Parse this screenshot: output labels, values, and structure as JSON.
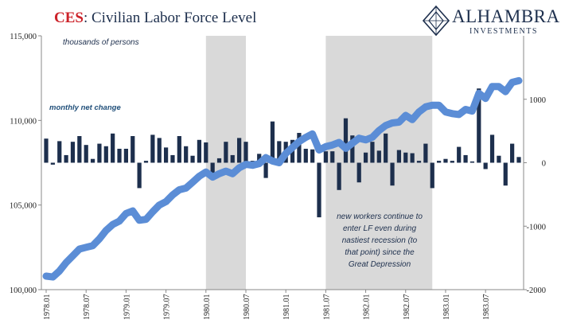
{
  "header": {
    "title_prefix": "CES",
    "title_rest": ": Civilian Labor Force Level"
  },
  "logo": {
    "name": "ALHAMBRA",
    "subtitle": "INVESTMENTS"
  },
  "colors": {
    "line": "#5b8dd6",
    "bars": "#1d2f4d",
    "recession": "#d9d9d9",
    "title_accent": "#cc2229",
    "text": "#1d2f4d"
  },
  "chart_data": {
    "type": "line",
    "title": "CES: Civilian Labor Force Level",
    "annotations": {
      "units": "thousands of persons",
      "bars_label": "monthly net change",
      "note": [
        "new workers continue to",
        "enter LF even during",
        "nastiest recession (to",
        "that point) since the",
        "Great Depression"
      ]
    },
    "x_tick_labels": [
      "1978.01",
      "1978.07",
      "1979.01",
      "1979.07",
      "1980.01",
      "1980.07",
      "1981.01",
      "1981.07",
      "1982.01",
      "1982.07",
      "1983.01",
      "1983.07"
    ],
    "y_left": {
      "ylim": [
        100000,
        115000
      ],
      "ticks": [
        "100,000",
        "105,000",
        "110,000",
        "115,000"
      ]
    },
    "y_right": {
      "ylim": [
        -2000,
        2000
      ],
      "ticks": [
        "-2000",
        "-1000",
        "0",
        "1000"
      ]
    },
    "recession_bands": [
      {
        "start": "1980.01",
        "end": "1980.07"
      },
      {
        "start": "1981.07",
        "end": "1982.11"
      }
    ],
    "series": [
      {
        "axis": "left",
        "kind": "line",
        "start": "1978.01",
        "values": [
          100800,
          100750,
          101100,
          101600,
          102000,
          102400,
          102500,
          102600,
          103000,
          103500,
          103850,
          104050,
          104500,
          104650,
          104100,
          104150,
          104600,
          105000,
          105200,
          105600,
          105900,
          106000,
          106350,
          106700,
          106950,
          106650,
          106850,
          107000,
          106850,
          107200,
          107400,
          107350,
          107450,
          107800,
          107600,
          107500,
          108050,
          108400,
          108750,
          109000,
          109200,
          108250,
          108450,
          108550,
          108700,
          108350,
          108650,
          108950,
          108850,
          109000,
          109400,
          109700,
          109850,
          109900,
          110300,
          110050,
          110500,
          110800,
          110900,
          110900,
          110500,
          110400,
          110350,
          110650,
          110550,
          111600,
          111300,
          112000,
          112000,
          111700,
          112250,
          112350
        ]
      },
      {
        "axis": "right",
        "kind": "bar",
        "start": "1978.01",
        "values": [
          380,
          -30,
          340,
          120,
          330,
          420,
          280,
          60,
          300,
          260,
          460,
          220,
          220,
          420,
          -400,
          30,
          440,
          390,
          240,
          120,
          420,
          260,
          110,
          360,
          320,
          -210,
          70,
          330,
          120,
          390,
          330,
          30,
          140,
          -240,
          650,
          340,
          330,
          360,
          470,
          220,
          210,
          -860,
          180,
          180,
          -430,
          700,
          430,
          -310,
          160,
          330,
          190,
          460,
          -360,
          200,
          160,
          150,
          30,
          300,
          -400,
          30,
          60,
          30,
          250,
          120,
          20,
          1170,
          -100,
          440,
          110,
          -360,
          300,
          90
        ]
      }
    ]
  }
}
